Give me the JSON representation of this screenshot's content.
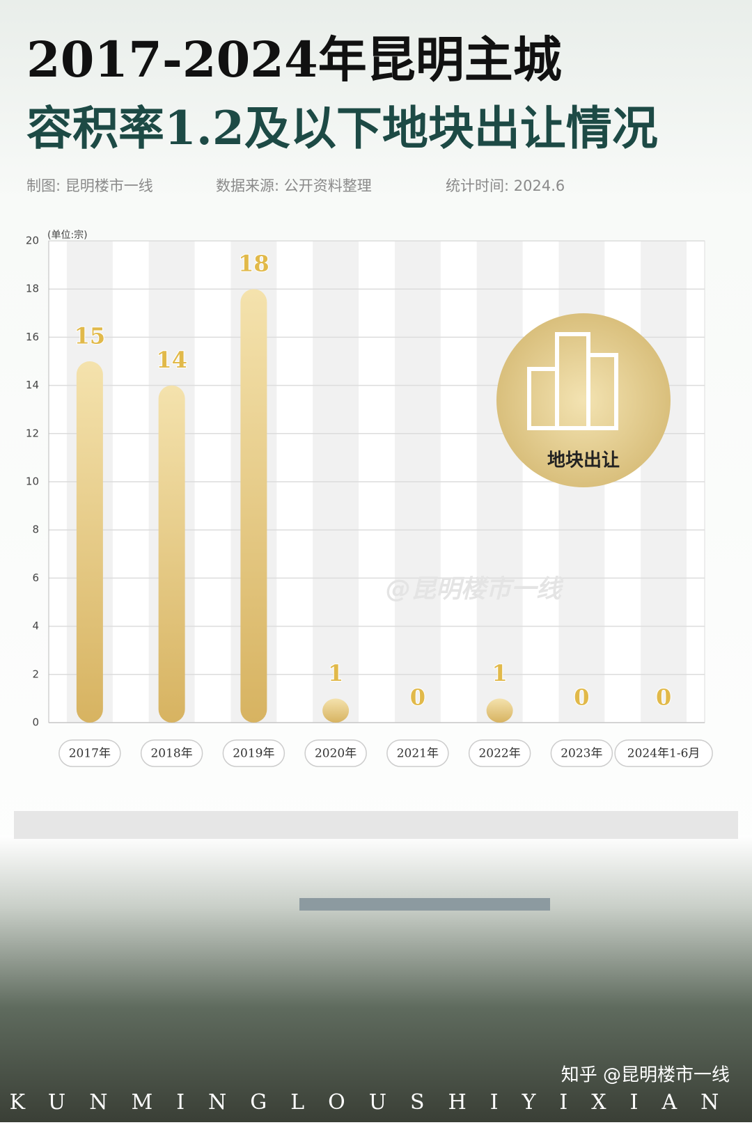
{
  "chart_data": {
    "type": "bar",
    "title": [
      "2017-2024年昆明主城",
      "容积率1.2及以下地块出让情况"
    ],
    "notes": [
      "制图: 昆明楼市一线",
      "数据来源: 公开资料整理",
      "统计时间: 2024.6"
    ],
    "y_label": "(单位:宗)",
    "categories": [
      "2017年",
      "2018年",
      "2019年",
      "2020年",
      "2021年",
      "2022年",
      "2023年",
      "2024年1-6月"
    ],
    "values": [
      15,
      14,
      18,
      1,
      0,
      1,
      0,
      0
    ],
    "color": "#e3c47c",
    "ylim": [
      0,
      20
    ],
    "yticks": [
      0,
      2,
      4,
      6,
      8,
      10,
      12,
      14,
      16,
      18,
      20
    ],
    "grid": true,
    "badge": "地块出让",
    "watermark": "@昆明楼市一线",
    "footer": "KUNMINGLOUSHIYIXIAN",
    "credit": "知乎 @昆明楼市一线"
  }
}
